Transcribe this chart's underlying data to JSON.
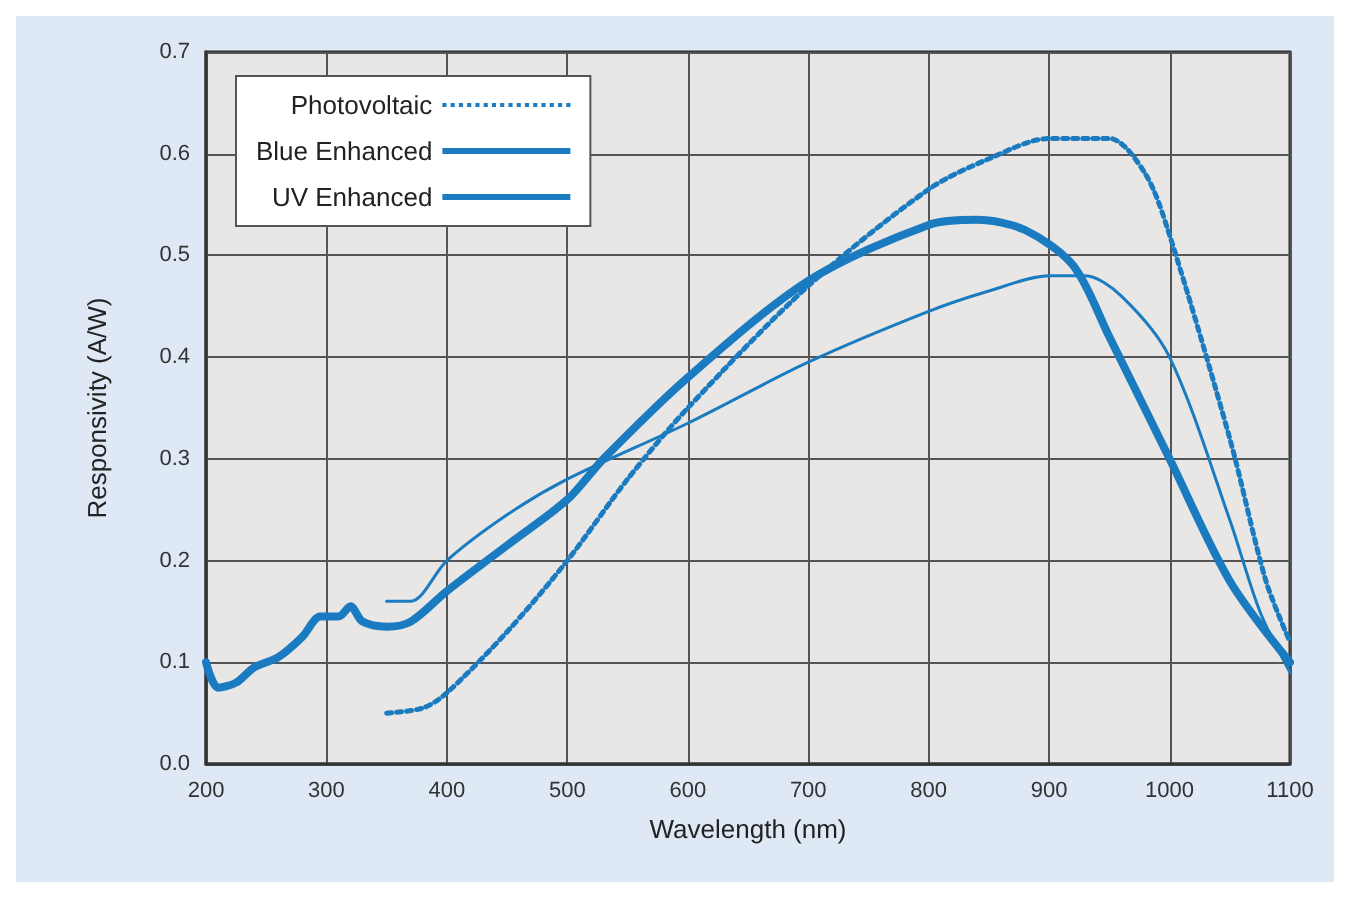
{
  "chart_data": {
    "type": "line",
    "xlabel": "Wavelength (nm)",
    "ylabel": "Responsivity (A/W)",
    "xlim": [
      200,
      1100
    ],
    "xticks": [
      200,
      300,
      400,
      500,
      600,
      700,
      800,
      900,
      1000,
      1100
    ],
    "ylim": [
      0,
      0.7
    ],
    "yticks": [
      {
        "value": 0,
        "label": "0.0"
      },
      0.1,
      0.2,
      0.3,
      0.4,
      0.5,
      0.6,
      0.7
    ],
    "grid": true,
    "legend": "top left",
    "marker": "none",
    "series": [
      {
        "name": "Photovoltaic",
        "color": "#1a7bc1",
        "line_style": "dotted",
        "x": [
          350,
          380,
          400,
          450,
          500,
          550,
          600,
          700,
          800,
          850,
          900,
          950,
          980,
          1000,
          1050,
          1080,
          1100
        ],
        "values": [
          0.05,
          0.055,
          0.07,
          0.13,
          0.2,
          0.28,
          0.35,
          0.47,
          0.565,
          0.595,
          0.615,
          0.615,
          0.58,
          0.52,
          0.32,
          0.18,
          0.12
        ]
      },
      {
        "name": "Blue Enhanced",
        "color": "#1a7bc1",
        "line_style": "solid",
        "x": [
          350,
          370,
          400,
          450,
          500,
          600,
          700,
          800,
          850,
          900,
          930,
          960,
          1000,
          1050,
          1075,
          1100
        ],
        "values": [
          0.16,
          0.16,
          0.2,
          0.245,
          0.28,
          0.335,
          0.395,
          0.445,
          0.465,
          0.48,
          0.48,
          0.46,
          0.4,
          0.24,
          0.15,
          0.09
        ]
      },
      {
        "name": "UV Enhanced",
        "color": "#1a7bc1",
        "line_style": "solid",
        "x": [
          200,
          210,
          225,
          240,
          260,
          280,
          295,
          310,
          320,
          330,
          350,
          370,
          400,
          450,
          500,
          530,
          600,
          700,
          800,
          840,
          880,
          920,
          950,
          1000,
          1050,
          1100
        ],
        "values": [
          0.1,
          0.075,
          0.08,
          0.095,
          0.105,
          0.125,
          0.145,
          0.145,
          0.155,
          0.14,
          0.135,
          0.14,
          0.17,
          0.215,
          0.26,
          0.3,
          0.38,
          0.475,
          0.53,
          0.535,
          0.525,
          0.49,
          0.42,
          0.3,
          0.18,
          0.1
        ]
      }
    ]
  }
}
